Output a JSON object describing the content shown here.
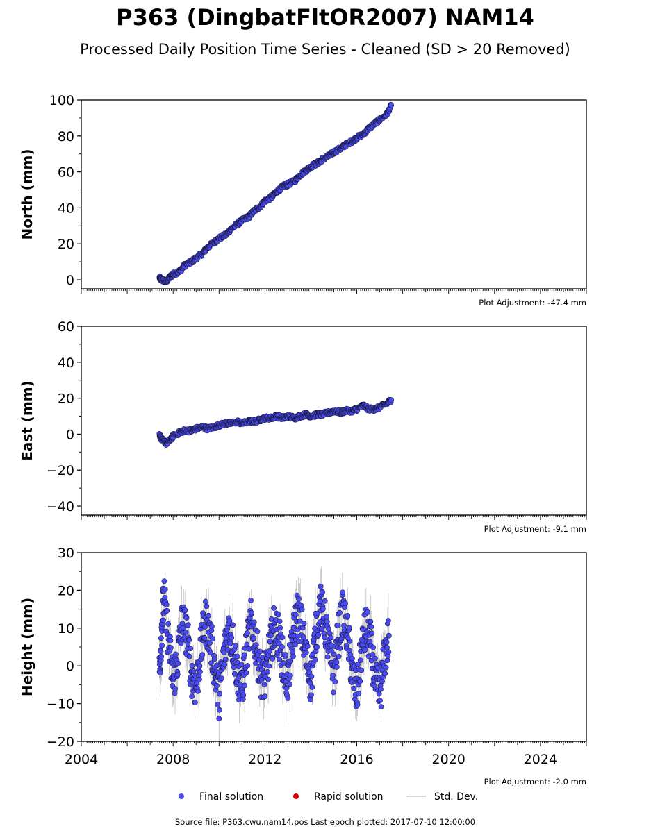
{
  "title": "P363 (DingbatFltOR2007) NAM14",
  "subtitle": "Processed Daily Position Time Series - Cleaned (SD > 20 Removed)",
  "legend": {
    "final": "Final solution",
    "rapid": "Rapid solution",
    "std": "Std. Dev."
  },
  "footer": "Source file: P363.cwu.nam14.pos  Last epoch plotted: 2017-07-10 12:00:00",
  "colors": {
    "final": "#4b4bf5",
    "rapid": "#e00000",
    "std": "#c8c8c8"
  },
  "chart_data": [
    {
      "type": "scatter",
      "ylabel": "North (mm)",
      "adjustment": "Plot Adjustment: -47.4 mm",
      "xlim": [
        2004,
        2026
      ],
      "ylim": [
        -5,
        100
      ],
      "yticks": [
        0,
        20,
        40,
        60,
        80,
        100
      ],
      "ytick_labels": [
        "0",
        "20",
        "40",
        "60",
        "80",
        "100"
      ],
      "series": [
        {
          "x": [
            2007.4,
            2007.5,
            2007.7,
            2007.9,
            2008.0,
            2008.3,
            2008.5,
            2008.8,
            2009.0,
            2009.3,
            2009.5,
            2009.8,
            2010.0,
            2010.3,
            2010.5,
            2010.8,
            2011.0,
            2011.3,
            2011.5,
            2011.8,
            2012.0,
            2012.3,
            2012.5,
            2012.8,
            2013.0,
            2013.3,
            2013.5,
            2013.8,
            2014.0,
            2014.3,
            2014.5,
            2014.8,
            2015.0,
            2015.3,
            2015.5,
            2015.8,
            2016.0,
            2016.3,
            2016.5,
            2016.8,
            2017.0,
            2017.3,
            2017.5
          ],
          "y": [
            1,
            0,
            -1,
            2,
            3,
            5,
            8,
            10,
            12,
            15,
            18,
            21,
            23,
            25,
            28,
            31,
            33,
            35,
            38,
            41,
            44,
            46,
            49,
            52,
            53,
            55,
            58,
            61,
            63,
            65,
            67,
            69,
            71,
            73,
            75,
            77,
            79,
            81,
            84,
            87,
            89,
            92,
            97
          ]
        }
      ]
    },
    {
      "type": "scatter",
      "ylabel": "East (mm)",
      "adjustment": "Plot Adjustment: -9.1 mm",
      "xlim": [
        2004,
        2026
      ],
      "ylim": [
        -45,
        60
      ],
      "yticks": [
        -40,
        -20,
        0,
        20,
        40,
        60
      ],
      "ytick_labels": [
        "−40",
        "−20",
        "0",
        "20",
        "40",
        "60"
      ],
      "series": [
        {
          "x": [
            2007.4,
            2007.5,
            2007.7,
            2007.9,
            2008.0,
            2008.3,
            2008.5,
            2008.8,
            2009.0,
            2009.3,
            2009.5,
            2009.8,
            2010.0,
            2010.3,
            2010.5,
            2010.8,
            2011.0,
            2011.3,
            2011.5,
            2011.8,
            2012.0,
            2012.3,
            2012.5,
            2012.8,
            2013.0,
            2013.3,
            2013.5,
            2013.8,
            2014.0,
            2014.3,
            2014.5,
            2014.8,
            2015.0,
            2015.3,
            2015.5,
            2015.8,
            2016.0,
            2016.3,
            2016.5,
            2016.8,
            2017.0,
            2017.3,
            2017.5
          ],
          "y": [
            0,
            -3,
            -5,
            -3,
            -1,
            1,
            2,
            2,
            3,
            4,
            3,
            4,
            5,
            6,
            6,
            7,
            6,
            7,
            7,
            8,
            9,
            9,
            10,
            9,
            10,
            9,
            10,
            11,
            10,
            11,
            11,
            12,
            13,
            12,
            13,
            13,
            14,
            16,
            14,
            14,
            15,
            17,
            19
          ]
        }
      ]
    },
    {
      "type": "scatter",
      "ylabel": "Height (mm)",
      "adjustment": "Plot Adjustment: -2.0 mm",
      "xlim": [
        2004,
        2026
      ],
      "ylim": [
        -20,
        30
      ],
      "yticks": [
        -20,
        -10,
        0,
        10,
        20,
        30
      ],
      "ytick_labels": [
        "−20",
        "−10",
        "0",
        "10",
        "20",
        "30"
      ],
      "xticks": [
        2004,
        2008,
        2012,
        2016,
        2020,
        2024
      ],
      "xtick_labels": [
        "2004",
        "2008",
        "2012",
        "2016",
        "2020",
        "2024"
      ],
      "series": [
        {
          "x": [
            2007.4,
            2007.5,
            2007.6,
            2007.8,
            2008.0,
            2008.2,
            2008.4,
            2008.6,
            2008.8,
            2009.0,
            2009.2,
            2009.4,
            2009.6,
            2009.8,
            2010.0,
            2010.2,
            2010.4,
            2010.6,
            2010.8,
            2011.0,
            2011.2,
            2011.4,
            2011.6,
            2011.8,
            2012.0,
            2012.2,
            2012.4,
            2012.6,
            2012.8,
            2013.0,
            2013.2,
            2013.4,
            2013.6,
            2013.8,
            2014.0,
            2014.2,
            2014.4,
            2014.6,
            2014.8,
            2015.0,
            2015.2,
            2015.4,
            2015.6,
            2015.8,
            2016.0,
            2016.2,
            2016.4,
            2016.6,
            2016.8,
            2017.0,
            2017.2,
            2017.4
          ],
          "y": [
            -2,
            10,
            18,
            6,
            -4,
            2,
            12,
            8,
            -2,
            -6,
            4,
            12,
            8,
            0,
            -8,
            2,
            10,
            6,
            -2,
            -6,
            4,
            12,
            6,
            -2,
            -4,
            4,
            10,
            8,
            0,
            -4,
            6,
            14,
            10,
            2,
            -4,
            8,
            16,
            12,
            4,
            -2,
            8,
            14,
            8,
            -2,
            -8,
            4,
            10,
            6,
            -4,
            -8,
            2,
            8
          ]
        }
      ]
    }
  ]
}
